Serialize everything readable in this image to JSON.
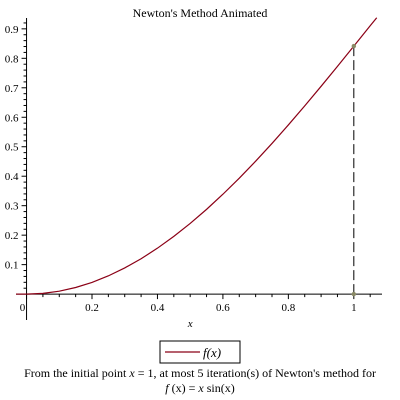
{
  "chart_data": {
    "type": "line",
    "title": "Newton's Method Animated",
    "xlabel": "x",
    "ylabel": "",
    "xlim": [
      -0.02,
      1.08
    ],
    "ylim": [
      -0.02,
      0.93
    ],
    "xticks": [
      {
        "value": 0,
        "label": "0"
      },
      {
        "value": 0.2,
        "label": "0.2"
      },
      {
        "value": 0.4,
        "label": "0.4"
      },
      {
        "value": 0.6,
        "label": "0.6"
      },
      {
        "value": 0.8,
        "label": "0.8"
      },
      {
        "value": 1,
        "label": "1"
      }
    ],
    "yticks": [
      {
        "value": 0.1,
        "label": "0.1"
      },
      {
        "value": 0.2,
        "label": "0.2"
      },
      {
        "value": 0.3,
        "label": "0.3"
      },
      {
        "value": 0.4,
        "label": "0.4"
      },
      {
        "value": 0.5,
        "label": "0.5"
      },
      {
        "value": 0.6,
        "label": "0.6"
      },
      {
        "value": 0.7,
        "label": "0.7"
      },
      {
        "value": 0.8,
        "label": "0.8"
      },
      {
        "value": 0.9,
        "label": "0.9"
      }
    ],
    "series": [
      {
        "name": "f(x)",
        "color": "#8b0016",
        "x": [
          0,
          0.05,
          0.1,
          0.15,
          0.2,
          0.25,
          0.3,
          0.35,
          0.4,
          0.45,
          0.5,
          0.55,
          0.6,
          0.65,
          0.7,
          0.75,
          0.8,
          0.85,
          0.9,
          0.95,
          1,
          1.05,
          1.07
        ],
        "y": [
          0,
          0.0025,
          0.01,
          0.0224,
          0.0397,
          0.0619,
          0.0887,
          0.1199,
          0.1558,
          0.1958,
          0.2397,
          0.2875,
          0.3388,
          0.3932,
          0.451,
          0.5112,
          0.5739,
          0.6386,
          0.705,
          0.7725,
          0.8415,
          0.9106,
          0.9378
        ]
      }
    ],
    "iteration": {
      "x0": 1,
      "fx0": 0.8415,
      "line_style": "dashed",
      "color": "#000000",
      "marker_color": "#8a8a66"
    },
    "legend": {
      "label": "f(x)",
      "position": "bottom-center"
    }
  },
  "caption": {
    "line1_prefix": "From the initial point ",
    "line1_var": "x",
    "line1_mid": " = 1, at most 5 iteration(s) of Newton's method for",
    "line2_f": "f",
    "line2_arg": "(x)",
    "line2_eq": " = ",
    "line2_rhs_a": "x",
    "line2_rhs_b": " sin",
    "line2_rhs_c": "(x)"
  }
}
